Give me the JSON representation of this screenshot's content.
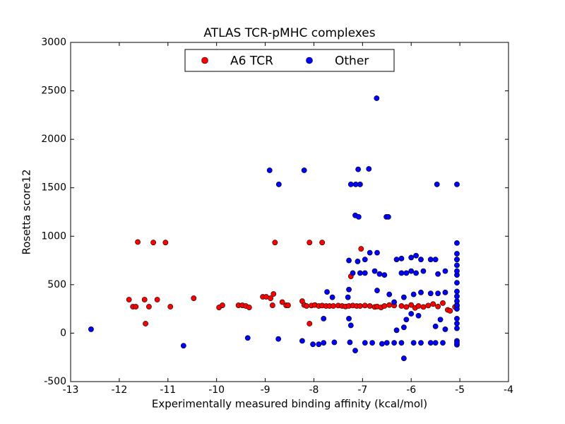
{
  "chart_data": {
    "type": "scatter",
    "title": "ATLAS TCR-pMHC complexes",
    "xlabel": "Experimentally measured binding affinity (kcal/mol)",
    "ylabel": "Rosetta score12",
    "xlim": [
      -13,
      -4
    ],
    "ylim": [
      -500,
      3000
    ],
    "xticks": [
      -13,
      -12,
      -11,
      -10,
      -9,
      -8,
      -7,
      -6,
      -5,
      -4
    ],
    "yticks": [
      -500,
      0,
      500,
      1000,
      1500,
      2000,
      2500,
      3000
    ],
    "legend": "upper center",
    "series": [
      {
        "name": "A6 TCR",
        "color": "#ff0000",
        "x": [
          -11.62,
          -11.3,
          -11.05,
          -11.8,
          -11.72,
          -11.66,
          -11.48,
          -11.46,
          -11.39,
          -11.22,
          -10.95,
          -10.47,
          -9.95,
          -9.88,
          -9.55,
          -9.47,
          -9.4,
          -9.33,
          -9.05,
          -8.98,
          -8.89,
          -8.83,
          -8.85,
          -8.8,
          -8.65,
          -8.57,
          -8.53,
          -8.24,
          -8.2,
          -8.15,
          -8.09,
          -8.05,
          -7.98,
          -7.9,
          -7.83,
          -7.83,
          -7.75,
          -7.68,
          -7.6,
          -7.5,
          -7.42,
          -7.35,
          -7.28,
          -7.24,
          -7.2,
          -7.12,
          -7.05,
          -7.03,
          -6.95,
          -6.85,
          -6.75,
          -6.7,
          -6.62,
          -6.55,
          -6.45,
          -6.35,
          -6.2,
          -6.1,
          -6.0,
          -5.92,
          -5.85,
          -5.75,
          -5.65,
          -5.55,
          -5.45,
          -5.35,
          -5.25,
          -5.2,
          -5.1,
          -5.06,
          -5.06,
          -8.09
        ],
        "values": [
          940,
          935,
          935,
          346,
          273,
          273,
          346,
          98,
          273,
          346,
          273,
          360,
          265,
          287,
          287,
          287,
          280,
          265,
          375,
          375,
          360,
          404,
          287,
          935,
          320,
          287,
          287,
          330,
          290,
          280,
          935,
          285,
          290,
          280,
          935,
          285,
          280,
          280,
          280,
          285,
          280,
          275,
          280,
          586,
          285,
          280,
          280,
          870,
          285,
          280,
          270,
          275,
          265,
          280,
          290,
          285,
          280,
          270,
          290,
          260,
          280,
          270,
          285,
          300,
          275,
          310,
          240,
          230,
          270,
          760,
          280,
          98
        ]
      },
      {
        "name": "Other",
        "color": "#0000ff",
        "x": [
          -12.58,
          -10.68,
          -9.36,
          -8.91,
          -8.72,
          -8.73,
          -8.2,
          -8.24,
          -8.02,
          -7.9,
          -7.8,
          -7.58,
          -7.26,
          -7.73,
          -7.8,
          -7.62,
          -7.28,
          -7.3,
          -7.28,
          -7.24,
          -7.24,
          -7.14,
          -7.05,
          -7.09,
          -6.87,
          -7.15,
          -7.08,
          -6.51,
          -6.47,
          -6.71,
          -5.47,
          -5.06,
          -7.28,
          -7.1,
          -6.95,
          -6.85,
          -6.7,
          -6.3,
          -6.2,
          -6.0,
          -5.9,
          -5.8,
          -5.6,
          -5.5,
          -7.2,
          -7.05,
          -6.95,
          -6.75,
          -6.65,
          -6.55,
          -6.2,
          -6.1,
          -6.0,
          -5.9,
          -5.75,
          -5.45,
          -5.3,
          -7.15,
          -6.95,
          -6.8,
          -6.6,
          -6.5,
          -6.35,
          -6.2,
          -6.15,
          -5.95,
          -5.8,
          -5.6,
          -5.5,
          -5.35,
          -6.7,
          -6.45,
          -6.15,
          -5.95,
          -5.8,
          -5.6,
          -5.45,
          -5.3,
          -6.35,
          -6.0,
          -6.1,
          -6.15,
          -6.3,
          -5.85,
          -5.5,
          -5.3,
          -5.4,
          -5.06,
          -5.06,
          -5.06,
          -5.06,
          -5.06,
          -5.06,
          -5.06,
          -5.06,
          -5.06,
          -5.06,
          -5.06,
          -5.06,
          -5.06,
          -5.06,
          -5.06,
          -5.06,
          -5.06,
          -5.06
        ],
        "values": [
          40,
          -130,
          -50,
          1680,
          1535,
          -60,
          1680,
          -80,
          -115,
          -115,
          -100,
          -95,
          -95,
          425,
          150,
          370,
          450,
          370,
          150,
          80,
          1535,
          1535,
          1535,
          1690,
          1695,
          1215,
          1200,
          1200,
          1200,
          2424,
          1535,
          1535,
          750,
          740,
          760,
          830,
          830,
          760,
          770,
          780,
          800,
          760,
          760,
          760,
          620,
          620,
          620,
          640,
          610,
          600,
          620,
          620,
          640,
          620,
          640,
          610,
          640,
          -180,
          -100,
          -100,
          -110,
          -100,
          -100,
          -100,
          -260,
          -100,
          -100,
          -100,
          -100,
          -100,
          440,
          400,
          370,
          400,
          420,
          410,
          410,
          420,
          320,
          200,
          140,
          60,
          30,
          180,
          70,
          40,
          140,
          -120,
          -80,
          -100,
          50,
          100,
          150,
          250,
          290,
          330,
          380,
          430,
          520,
          600,
          640,
          700,
          760,
          820,
          930
        ]
      }
    ]
  }
}
